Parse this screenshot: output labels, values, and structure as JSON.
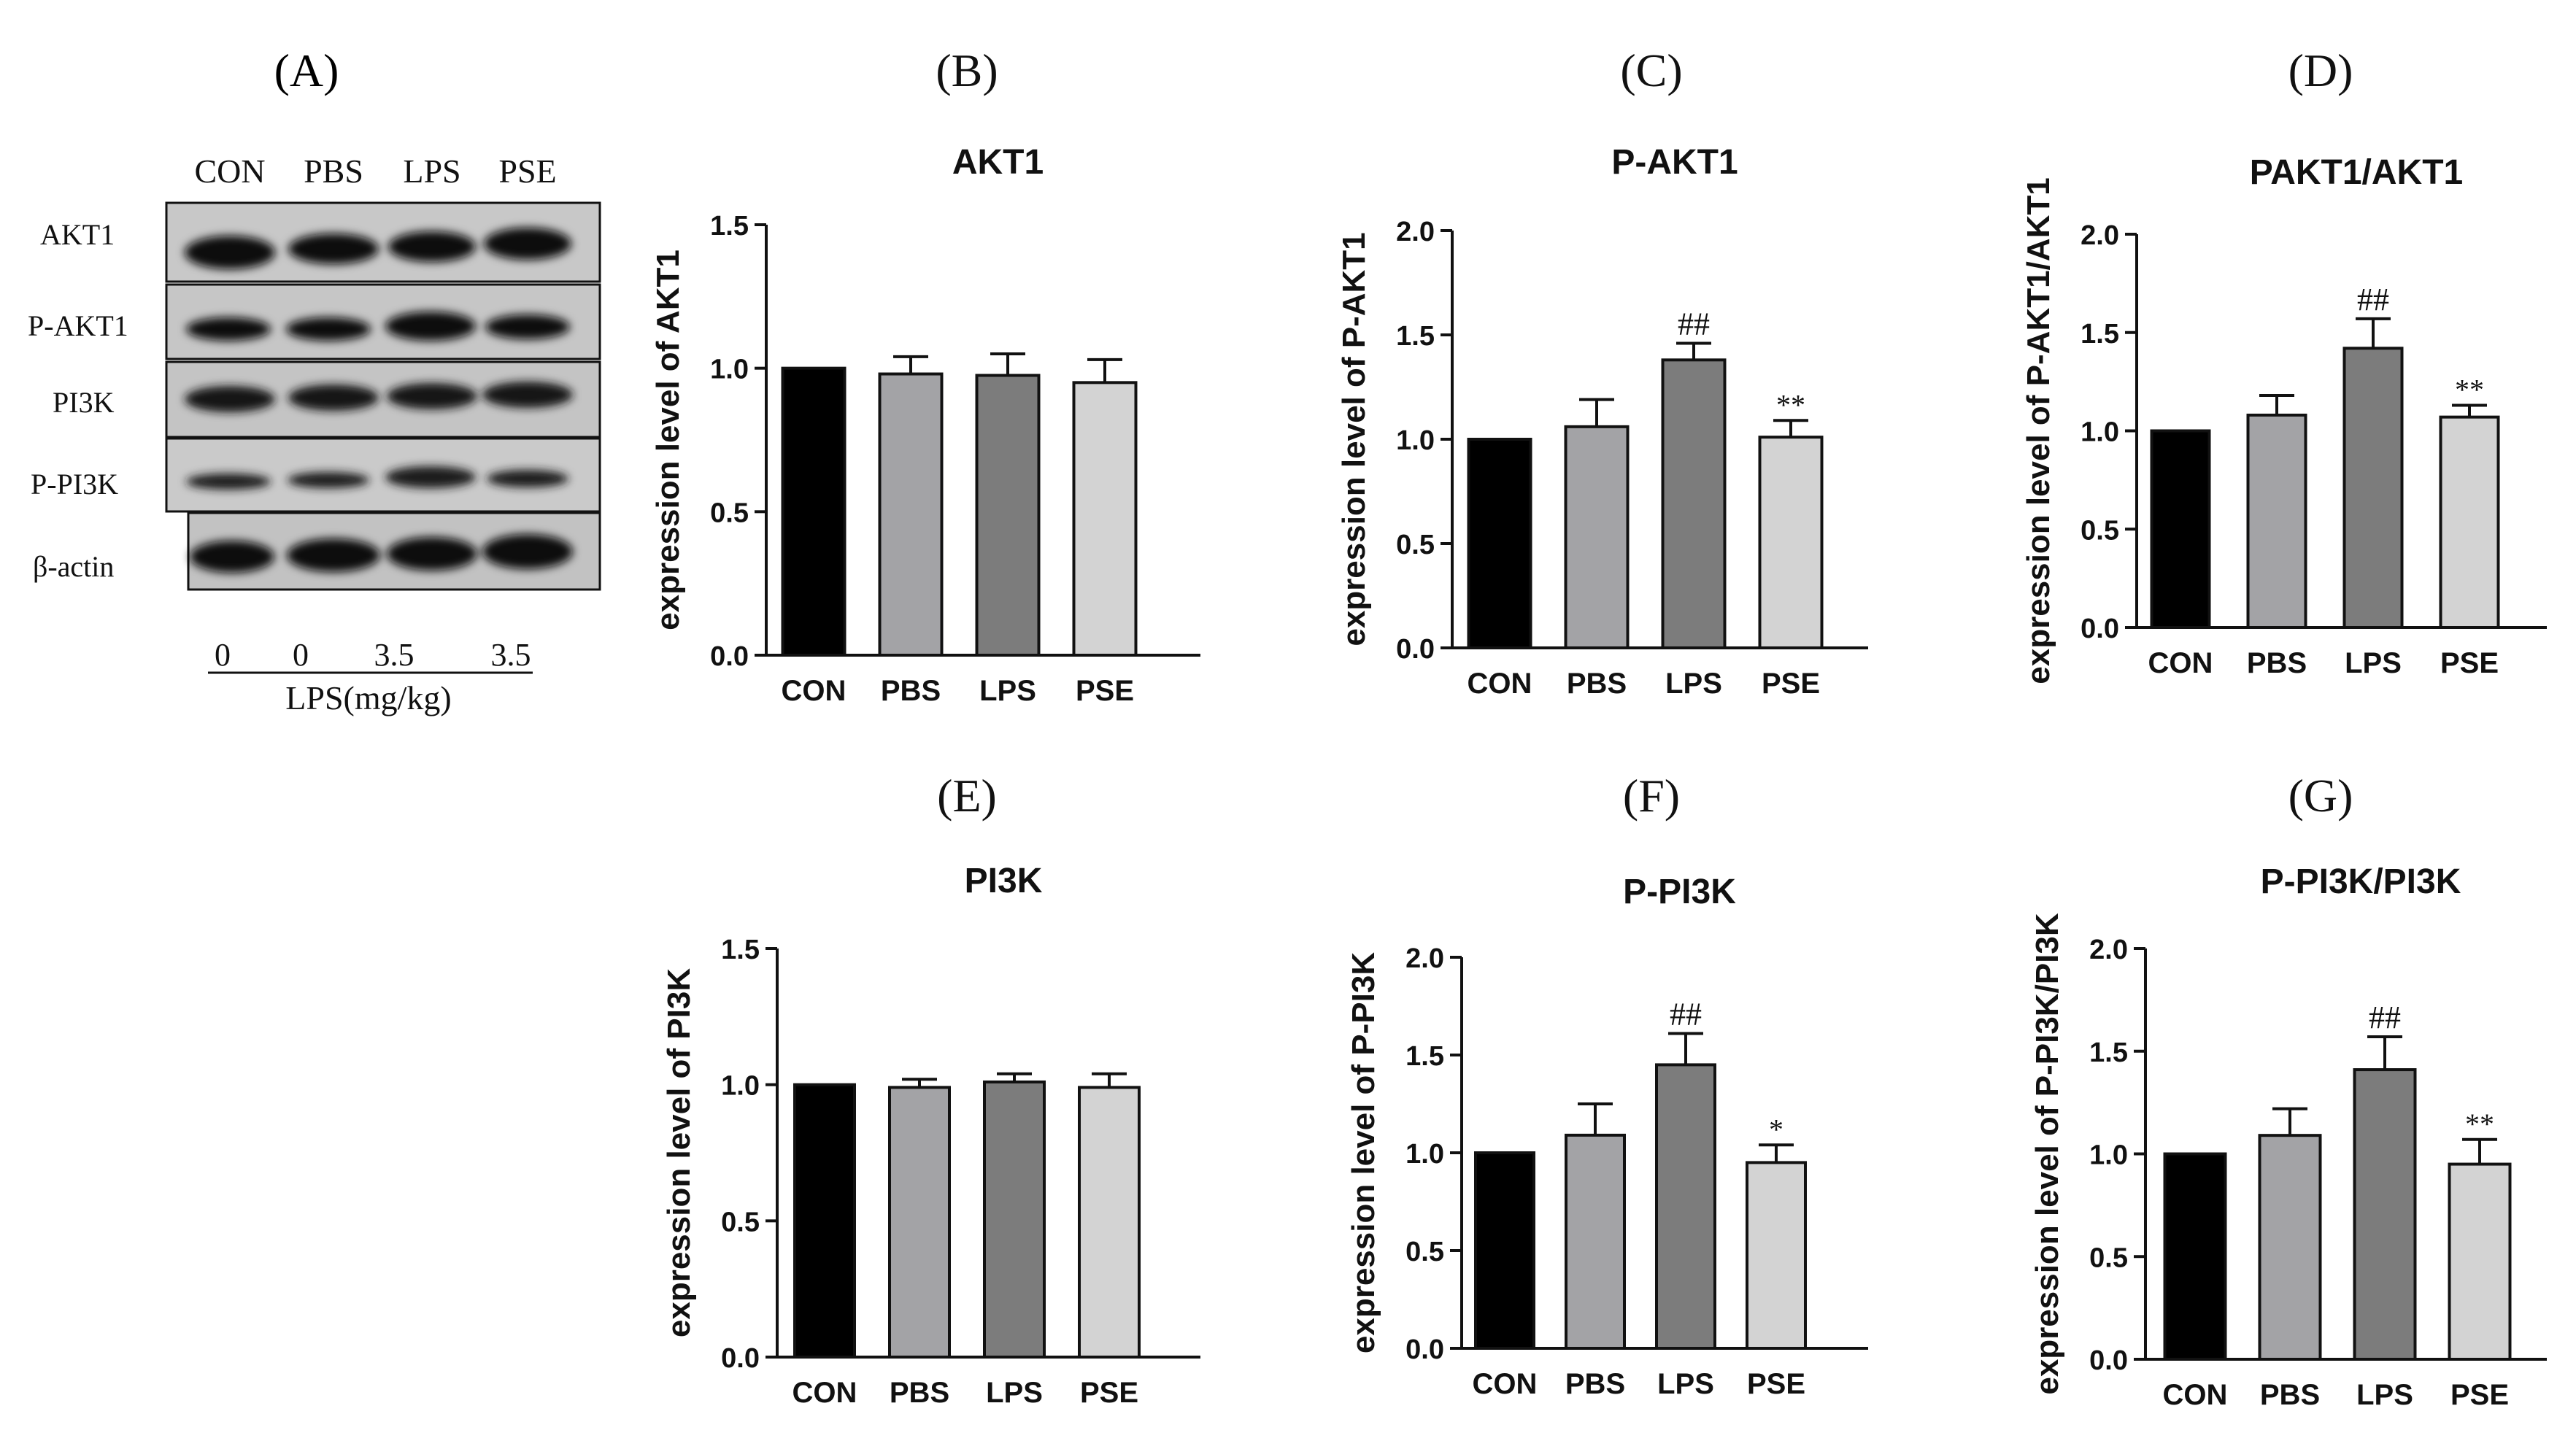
{
  "panel_letters": [
    "(A)",
    "(B)",
    "(C)",
    "(D)",
    "(E)",
    "(F)",
    "(G)"
  ],
  "blot": {
    "group_labels": [
      "CON",
      "PBS",
      "LPS",
      "PSE"
    ],
    "row_labels": [
      "AKT1",
      "P-AKT1",
      "PI3K",
      "P-PI3K",
      "β-actin"
    ],
    "doses": [
      "0",
      "0",
      "3.5",
      "3.5"
    ],
    "dose_label": "LPS(mg/kg)"
  },
  "chart_data": [
    {
      "type": "bar",
      "panel": "(B)",
      "title": "AKT1",
      "ylabel": "expression level of AKT1",
      "xlabel": "",
      "categories": [
        "CON",
        "PBS",
        "LPS",
        "PSE"
      ],
      "values": [
        1.0,
        0.98,
        0.975,
        0.95
      ],
      "errors": [
        0,
        0.06,
        0.075,
        0.08
      ],
      "annotations": [
        "",
        "",
        "",
        ""
      ],
      "ylim": [
        0,
        1.5
      ],
      "yticks": [
        "0.0",
        "0.5",
        "1.0",
        "1.5"
      ],
      "colors": [
        "#000000",
        "#a3a3a6",
        "#7c7c7c",
        "#d3d3d3"
      ]
    },
    {
      "type": "bar",
      "panel": "(C)",
      "title": "P-AKT1",
      "ylabel": "expression level of P-AKT1",
      "xlabel": "",
      "categories": [
        "CON",
        "PBS",
        "LPS",
        "PSE"
      ],
      "values": [
        1.0,
        1.06,
        1.38,
        1.01
      ],
      "errors": [
        0,
        0.13,
        0.08,
        0.08
      ],
      "annotations": [
        "",
        "",
        "##",
        "**"
      ],
      "ylim": [
        0,
        2.0
      ],
      "yticks": [
        "0.0",
        "0.5",
        "1.0",
        "1.5",
        "2.0"
      ],
      "colors": [
        "#000000",
        "#a3a3a6",
        "#7c7c7c",
        "#d3d3d3"
      ]
    },
    {
      "type": "bar",
      "panel": "(D)",
      "title": "PAKT1/AKT1",
      "ylabel": "expression level of P-AKT1/AKT1",
      "xlabel": "",
      "categories": [
        "CON",
        "PBS",
        "LPS",
        "PSE"
      ],
      "values": [
        1.0,
        1.08,
        1.42,
        1.07
      ],
      "errors": [
        0,
        0.1,
        0.15,
        0.06
      ],
      "annotations": [
        "",
        "",
        "##",
        "**"
      ],
      "ylim": [
        0,
        2.0
      ],
      "yticks": [
        "0.0",
        "0.5",
        "1.0",
        "1.5",
        "2.0"
      ],
      "colors": [
        "#000000",
        "#a3a3a6",
        "#7c7c7c",
        "#d3d3d3"
      ]
    },
    {
      "type": "bar",
      "panel": "(E)",
      "title": "PI3K",
      "ylabel": "expression level of PI3K",
      "xlabel": "",
      "categories": [
        "CON",
        "PBS",
        "LPS",
        "PSE"
      ],
      "values": [
        1.0,
        0.99,
        1.01,
        0.99
      ],
      "errors": [
        0,
        0.03,
        0.03,
        0.05
      ],
      "annotations": [
        "",
        "",
        "",
        ""
      ],
      "ylim": [
        0,
        1.5
      ],
      "yticks": [
        "0.0",
        "0.5",
        "1.0",
        "1.5"
      ],
      "colors": [
        "#000000",
        "#a3a3a6",
        "#7c7c7c",
        "#d3d3d3"
      ]
    },
    {
      "type": "bar",
      "panel": "(F)",
      "title": "P-PI3K",
      "ylabel": "expression level of P-PI3K",
      "xlabel": "",
      "categories": [
        "CON",
        "PBS",
        "LPS",
        "PSE"
      ],
      "values": [
        1.0,
        1.09,
        1.45,
        0.95
      ],
      "errors": [
        0,
        0.16,
        0.16,
        0.09
      ],
      "annotations": [
        "",
        "",
        "##",
        "*"
      ],
      "ylim": [
        0,
        2.0
      ],
      "yticks": [
        "0.0",
        "0.5",
        "1.0",
        "1.5",
        "2.0"
      ],
      "colors": [
        "#000000",
        "#a3a3a6",
        "#7c7c7c",
        "#d3d3d3"
      ]
    },
    {
      "type": "bar",
      "panel": "(G)",
      "title": "P-PI3K/PI3K",
      "ylabel": "expression level of P-PI3K/PI3K",
      "xlabel": "",
      "categories": [
        "CON",
        "PBS",
        "LPS",
        "PSE"
      ],
      "values": [
        1.0,
        1.09,
        1.41,
        0.95
      ],
      "errors": [
        0,
        0.13,
        0.16,
        0.12
      ],
      "annotations": [
        "",
        "",
        "##",
        "**"
      ],
      "ylim": [
        0,
        2.0
      ],
      "yticks": [
        "0.0",
        "0.5",
        "1.0",
        "1.5",
        "2.0"
      ],
      "colors": [
        "#000000",
        "#a3a3a6",
        "#7c7c7c",
        "#d3d3d3"
      ]
    }
  ]
}
